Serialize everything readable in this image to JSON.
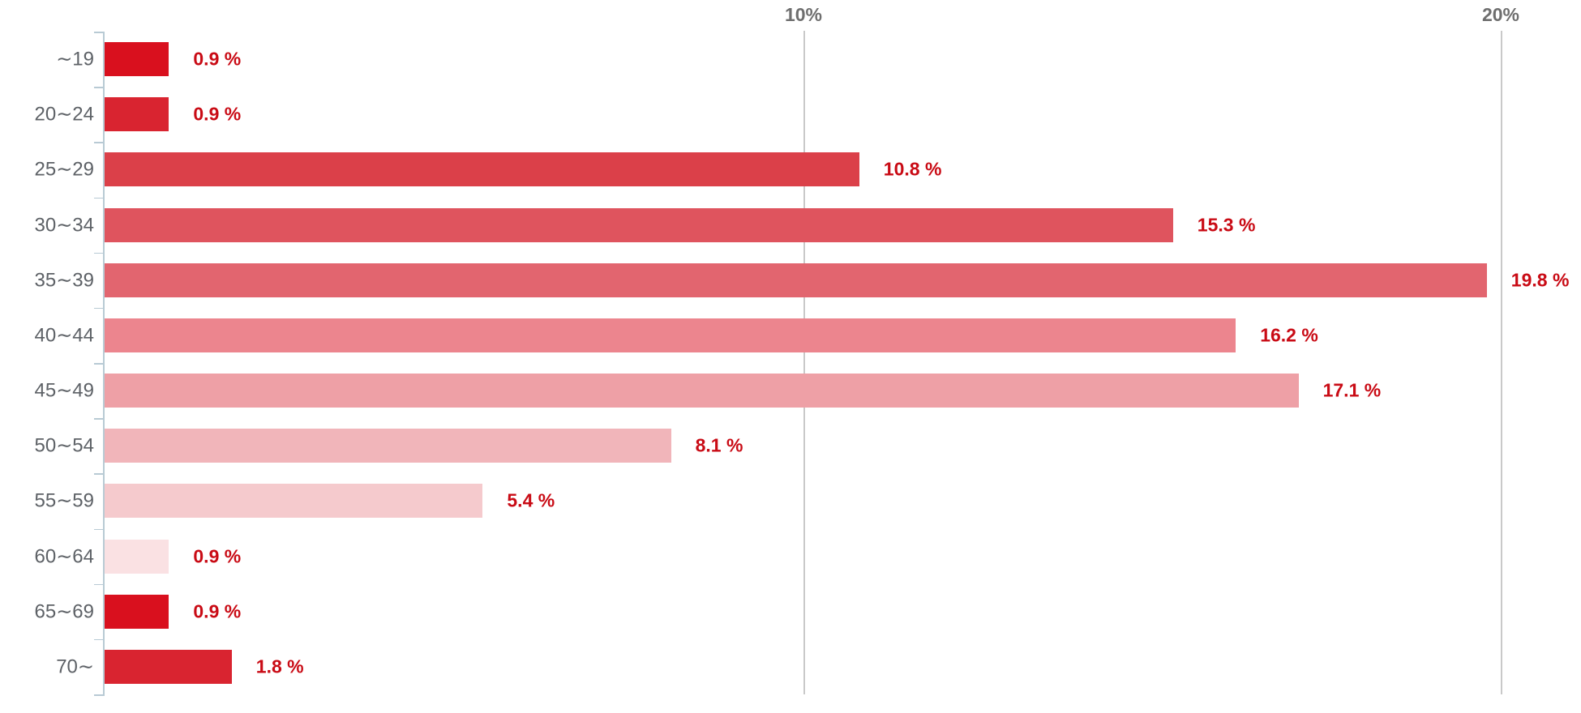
{
  "chart_data": {
    "type": "bar",
    "orientation": "horizontal",
    "title": "",
    "xlabel": "",
    "ylabel": "",
    "categories": [
      "∼19",
      "20∼24",
      "25∼29",
      "30∼34",
      "35∼39",
      "40∼44",
      "45∼49",
      "50∼54",
      "55∼59",
      "60∼64",
      "65∼69",
      "70∼"
    ],
    "values": [
      0.9,
      0.9,
      10.8,
      15.3,
      19.8,
      16.2,
      17.1,
      8.1,
      5.4,
      0.9,
      0.9,
      1.8
    ],
    "value_labels": [
      "0.9 %",
      "0.9 %",
      "10.8 %",
      "15.3 %",
      "19.8 %",
      "16.2 %",
      "17.1 %",
      "8.1 %",
      "5.4 %",
      "0.9 %",
      "0.9 %",
      "1.8 %"
    ],
    "bar_colors": [
      "#d9101e",
      "#d92430",
      "#db4049",
      "#df545e",
      "#e2656f",
      "#ec858e",
      "#eea0a6",
      "#f1b5ba",
      "#f5cacd",
      "#fae1e3",
      "#d9101e",
      "#d92430"
    ],
    "x_ticks": [
      {
        "value": 10,
        "label": "10%"
      },
      {
        "value": 20,
        "label": "20%"
      }
    ],
    "xlim": [
      0,
      21.2
    ],
    "legend": "none",
    "grid": "vertical gridlines at ticks only"
  },
  "colors": {
    "background": "#ffffff",
    "value_label": "#c90b15",
    "category_label": "#5d6166",
    "grid_tick_label": "#6e6e6e",
    "gridline": "#c9c9c9",
    "axis": "#b8cad4"
  }
}
